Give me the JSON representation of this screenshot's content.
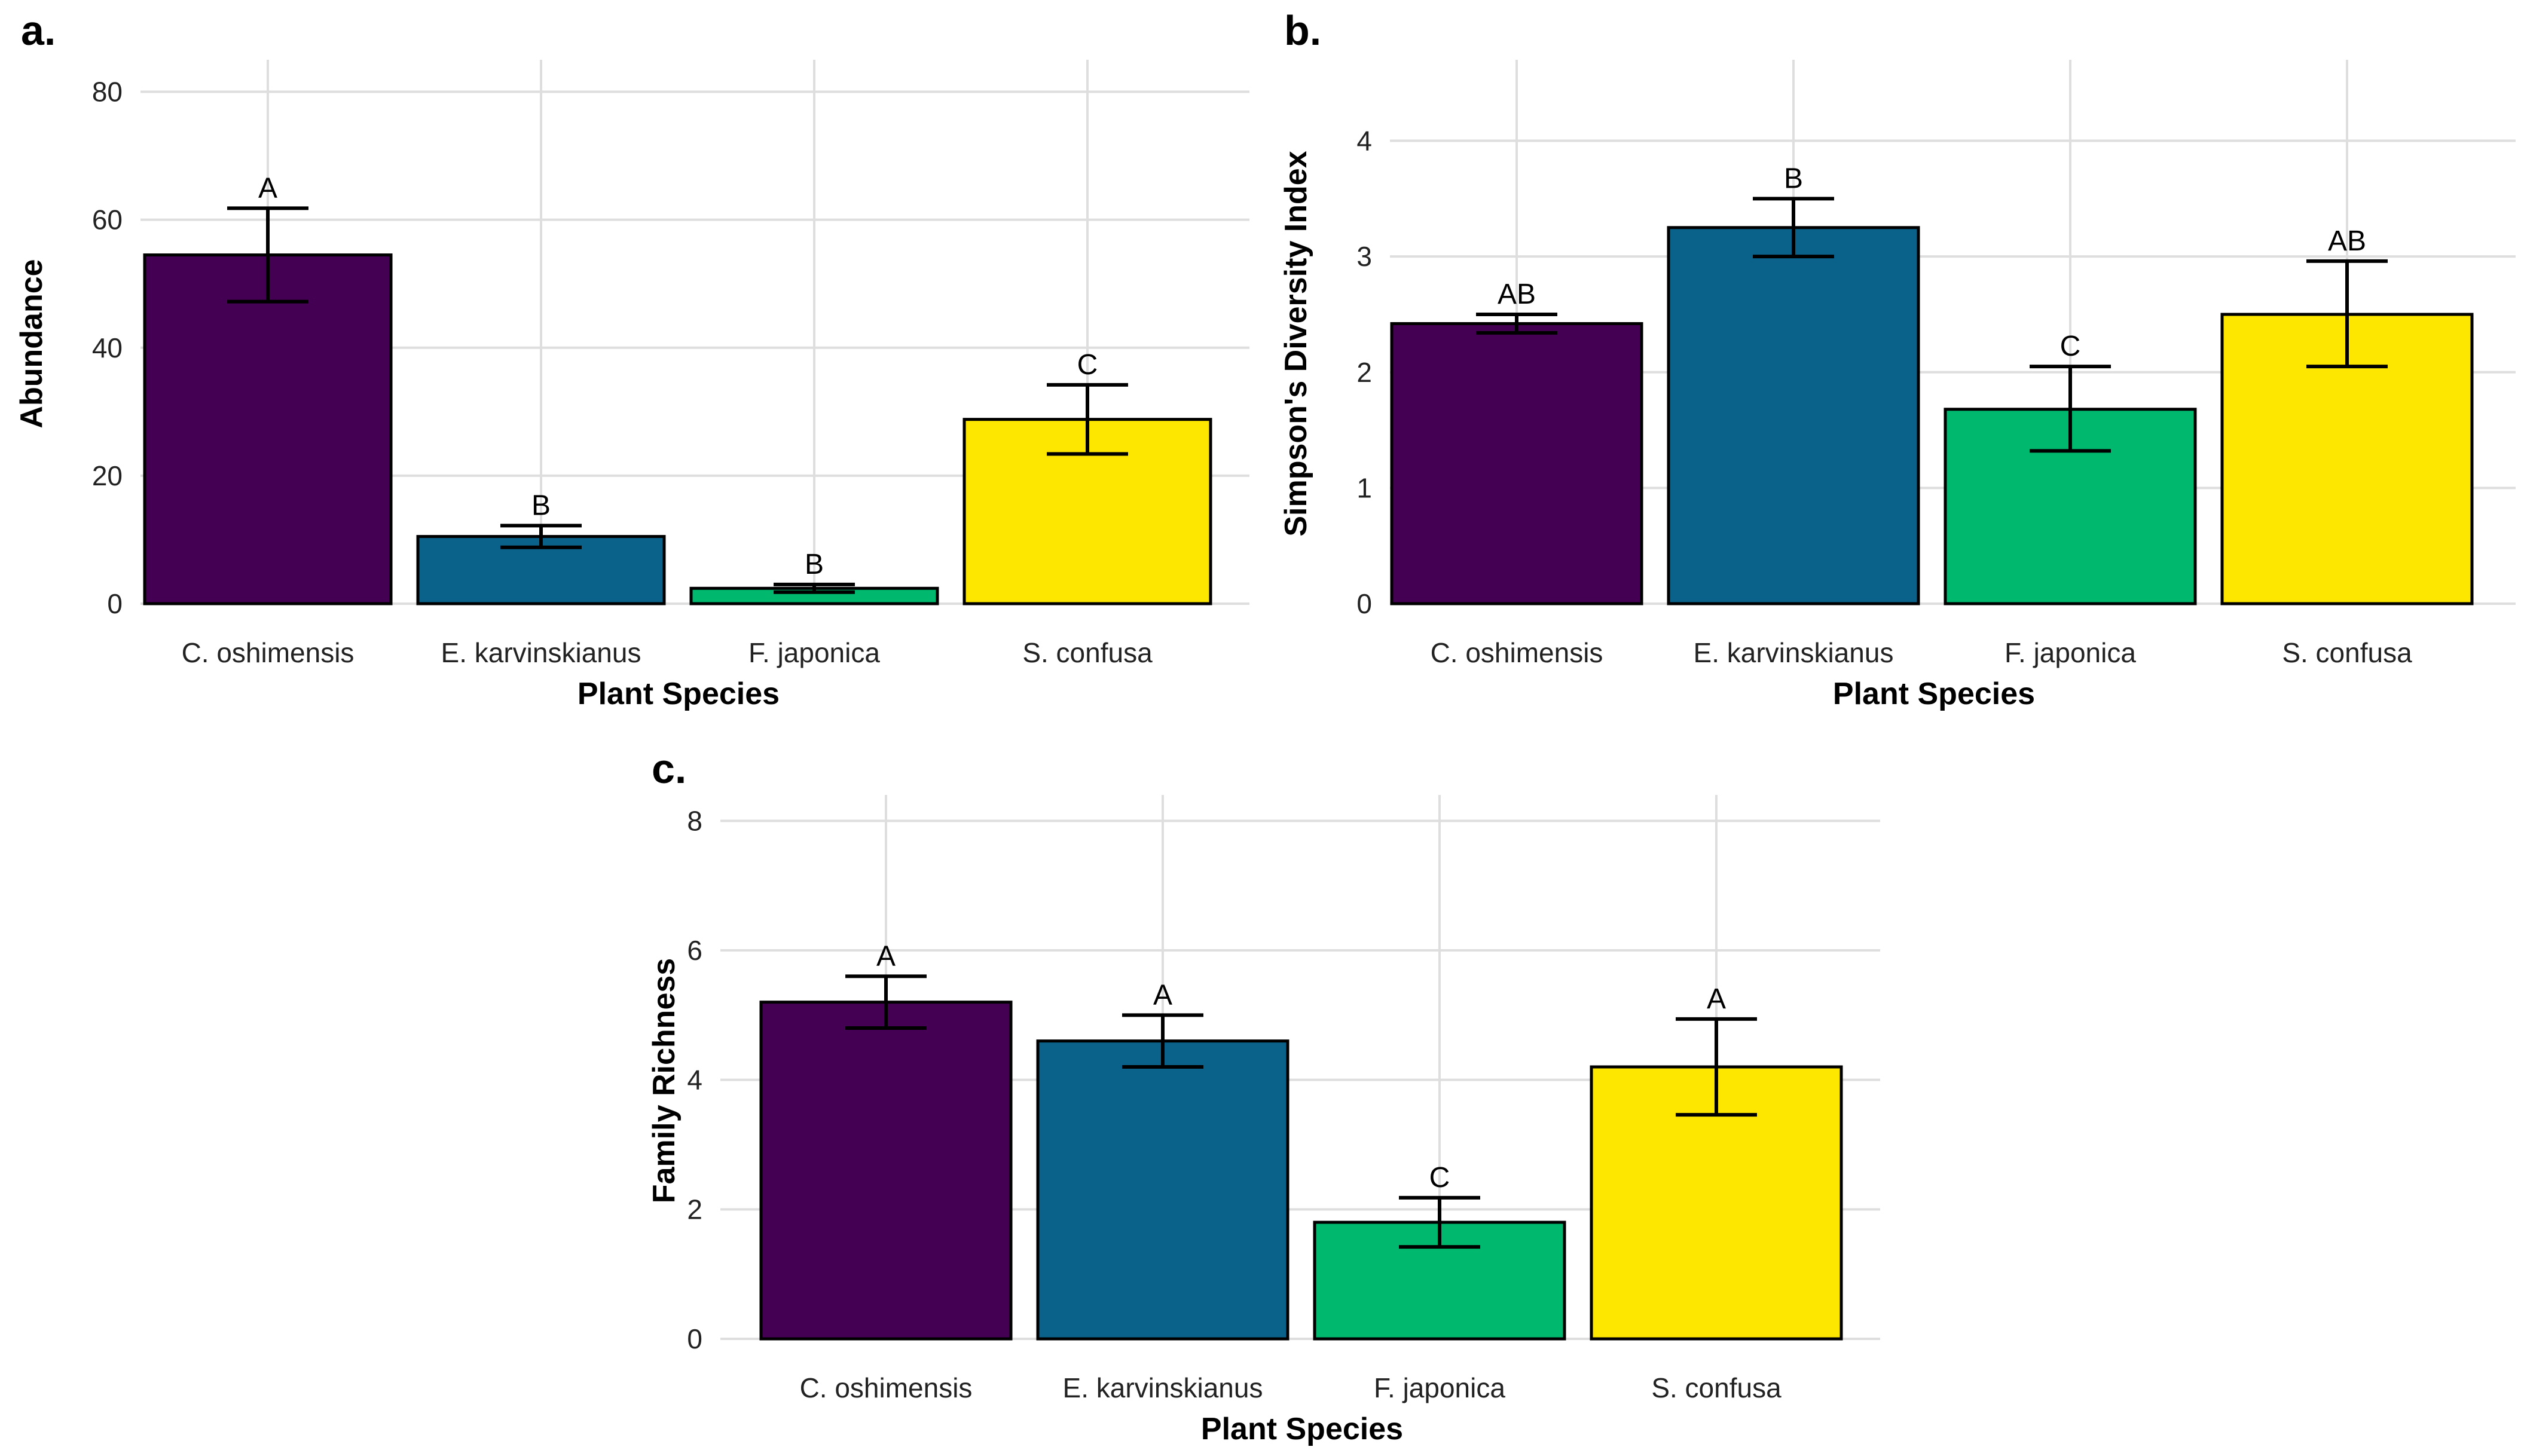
{
  "colors": {
    "C. oshimensis": "#440154",
    "E. karvinskianus": "#0a628b",
    "F. japonica": "#00b96e",
    "S. confusa": "#fde600"
  },
  "chart_data": [
    {
      "panel": "a.",
      "type": "bar",
      "title": "",
      "xlabel": "Plant Species",
      "ylabel": "Abundance",
      "ylim": [
        0,
        85
      ],
      "yticks": [
        0,
        20,
        40,
        60,
        80
      ],
      "categories": [
        "C. oshimensis",
        "E. karvinskianus",
        "F. japonica",
        "S. confusa"
      ],
      "values": [
        54.5,
        10.5,
        2.4,
        28.8
      ],
      "error_low": [
        47.2,
        8.8,
        1.8,
        23.4
      ],
      "error_high": [
        61.8,
        12.2,
        3.0,
        34.2
      ],
      "significance_letters": [
        "A",
        "B",
        "B",
        "C"
      ],
      "grid": true
    },
    {
      "panel": "b.",
      "type": "bar",
      "title": "",
      "xlabel": "Plant Species",
      "ylabel": "Simpson's Diversity Index",
      "ylim": [
        0,
        4.7
      ],
      "yticks": [
        0,
        1,
        2,
        3,
        4
      ],
      "categories": [
        "C. oshimensis",
        "E. karvinskianus",
        "F. japonica",
        "S. confusa"
      ],
      "values": [
        2.42,
        3.25,
        1.68,
        2.5
      ],
      "error_low": [
        2.34,
        3.0,
        1.32,
        2.05
      ],
      "error_high": [
        2.5,
        3.5,
        2.05,
        2.96
      ],
      "significance_letters": [
        "AB",
        "B",
        "C",
        "AB"
      ],
      "grid": true
    },
    {
      "panel": "c.",
      "type": "bar",
      "title": "",
      "xlabel": "Plant Species",
      "ylabel": "Family Richness",
      "ylim": [
        0,
        8.4
      ],
      "yticks": [
        0,
        2,
        4,
        6,
        8
      ],
      "categories": [
        "C. oshimensis",
        "E. karvinskianus",
        "F. japonica",
        "S. confusa"
      ],
      "values": [
        5.2,
        4.6,
        1.8,
        4.2
      ],
      "error_low": [
        4.8,
        4.2,
        1.42,
        3.46
      ],
      "error_high": [
        5.6,
        5.0,
        2.18,
        4.94
      ],
      "significance_letters": [
        "A",
        "A",
        "C",
        "A"
      ],
      "grid": true
    }
  ]
}
